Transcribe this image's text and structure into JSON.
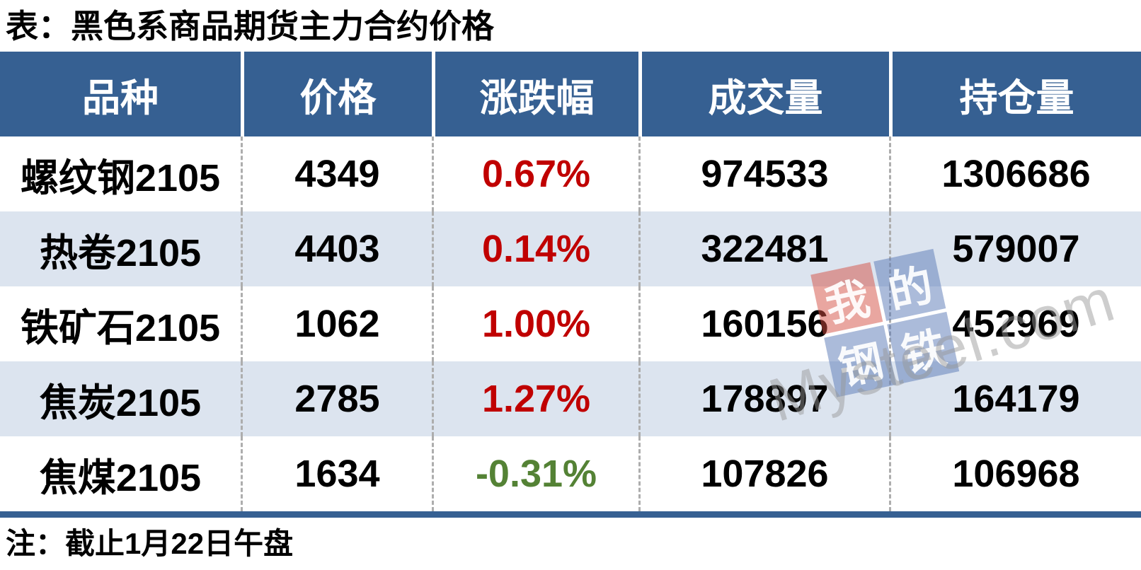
{
  "page": {
    "title": "表：黑色系商品期货主力合约价格",
    "note": "注：截止1月22日午盘"
  },
  "colors": {
    "header_bg": "#366092",
    "row_bg": "#FFFFFF",
    "row_alt_bg": "#DCE4EF",
    "bottom_bar": "#366092",
    "divider_dash": "#ADADAD",
    "text": "#000000",
    "up_red": "#C00000",
    "down_green": "#548235",
    "watermark_red_block": "rgba(211,77,66,0.5)",
    "watermark_blue_block": "rgba(88,120,182,0.5)",
    "watermark_gray": "rgba(150,150,150,0.48)"
  },
  "watermark": {
    "blocks": [
      {
        "char": "我",
        "bg": "red"
      },
      {
        "char": "的",
        "bg": "blue"
      },
      {
        "char": "钢",
        "bg": "blue"
      },
      {
        "char": "铁",
        "bg": "blue"
      }
    ],
    "domain": "Mysteel.com"
  },
  "chart_data": {
    "type": "table",
    "title": "表：黑色系商品期货主力合约价格",
    "footnote": "注：截止1月22日午盘",
    "columns": [
      "品种",
      "价格",
      "涨跌幅",
      "成交量",
      "持仓量"
    ],
    "rows": [
      {
        "variety": "螺纹钢2105",
        "price": "4349",
        "change": "0.67%",
        "change_dir": "up",
        "volume": "974533",
        "open_interest": "1306686"
      },
      {
        "variety": "热卷2105",
        "price": "4403",
        "change": "0.14%",
        "change_dir": "up",
        "volume": "322481",
        "open_interest": "579007"
      },
      {
        "variety": "铁矿石2105",
        "price": "1062",
        "change": "1.00%",
        "change_dir": "up",
        "volume": "160156",
        "open_interest": "452969"
      },
      {
        "variety": "焦炭2105",
        "price": "2785",
        "change": "1.27%",
        "change_dir": "up",
        "volume": "178897",
        "open_interest": "164179"
      },
      {
        "variety": "焦煤2105",
        "price": "1634",
        "change": "-0.31%",
        "change_dir": "down",
        "volume": "107826",
        "open_interest": "106968"
      }
    ]
  }
}
